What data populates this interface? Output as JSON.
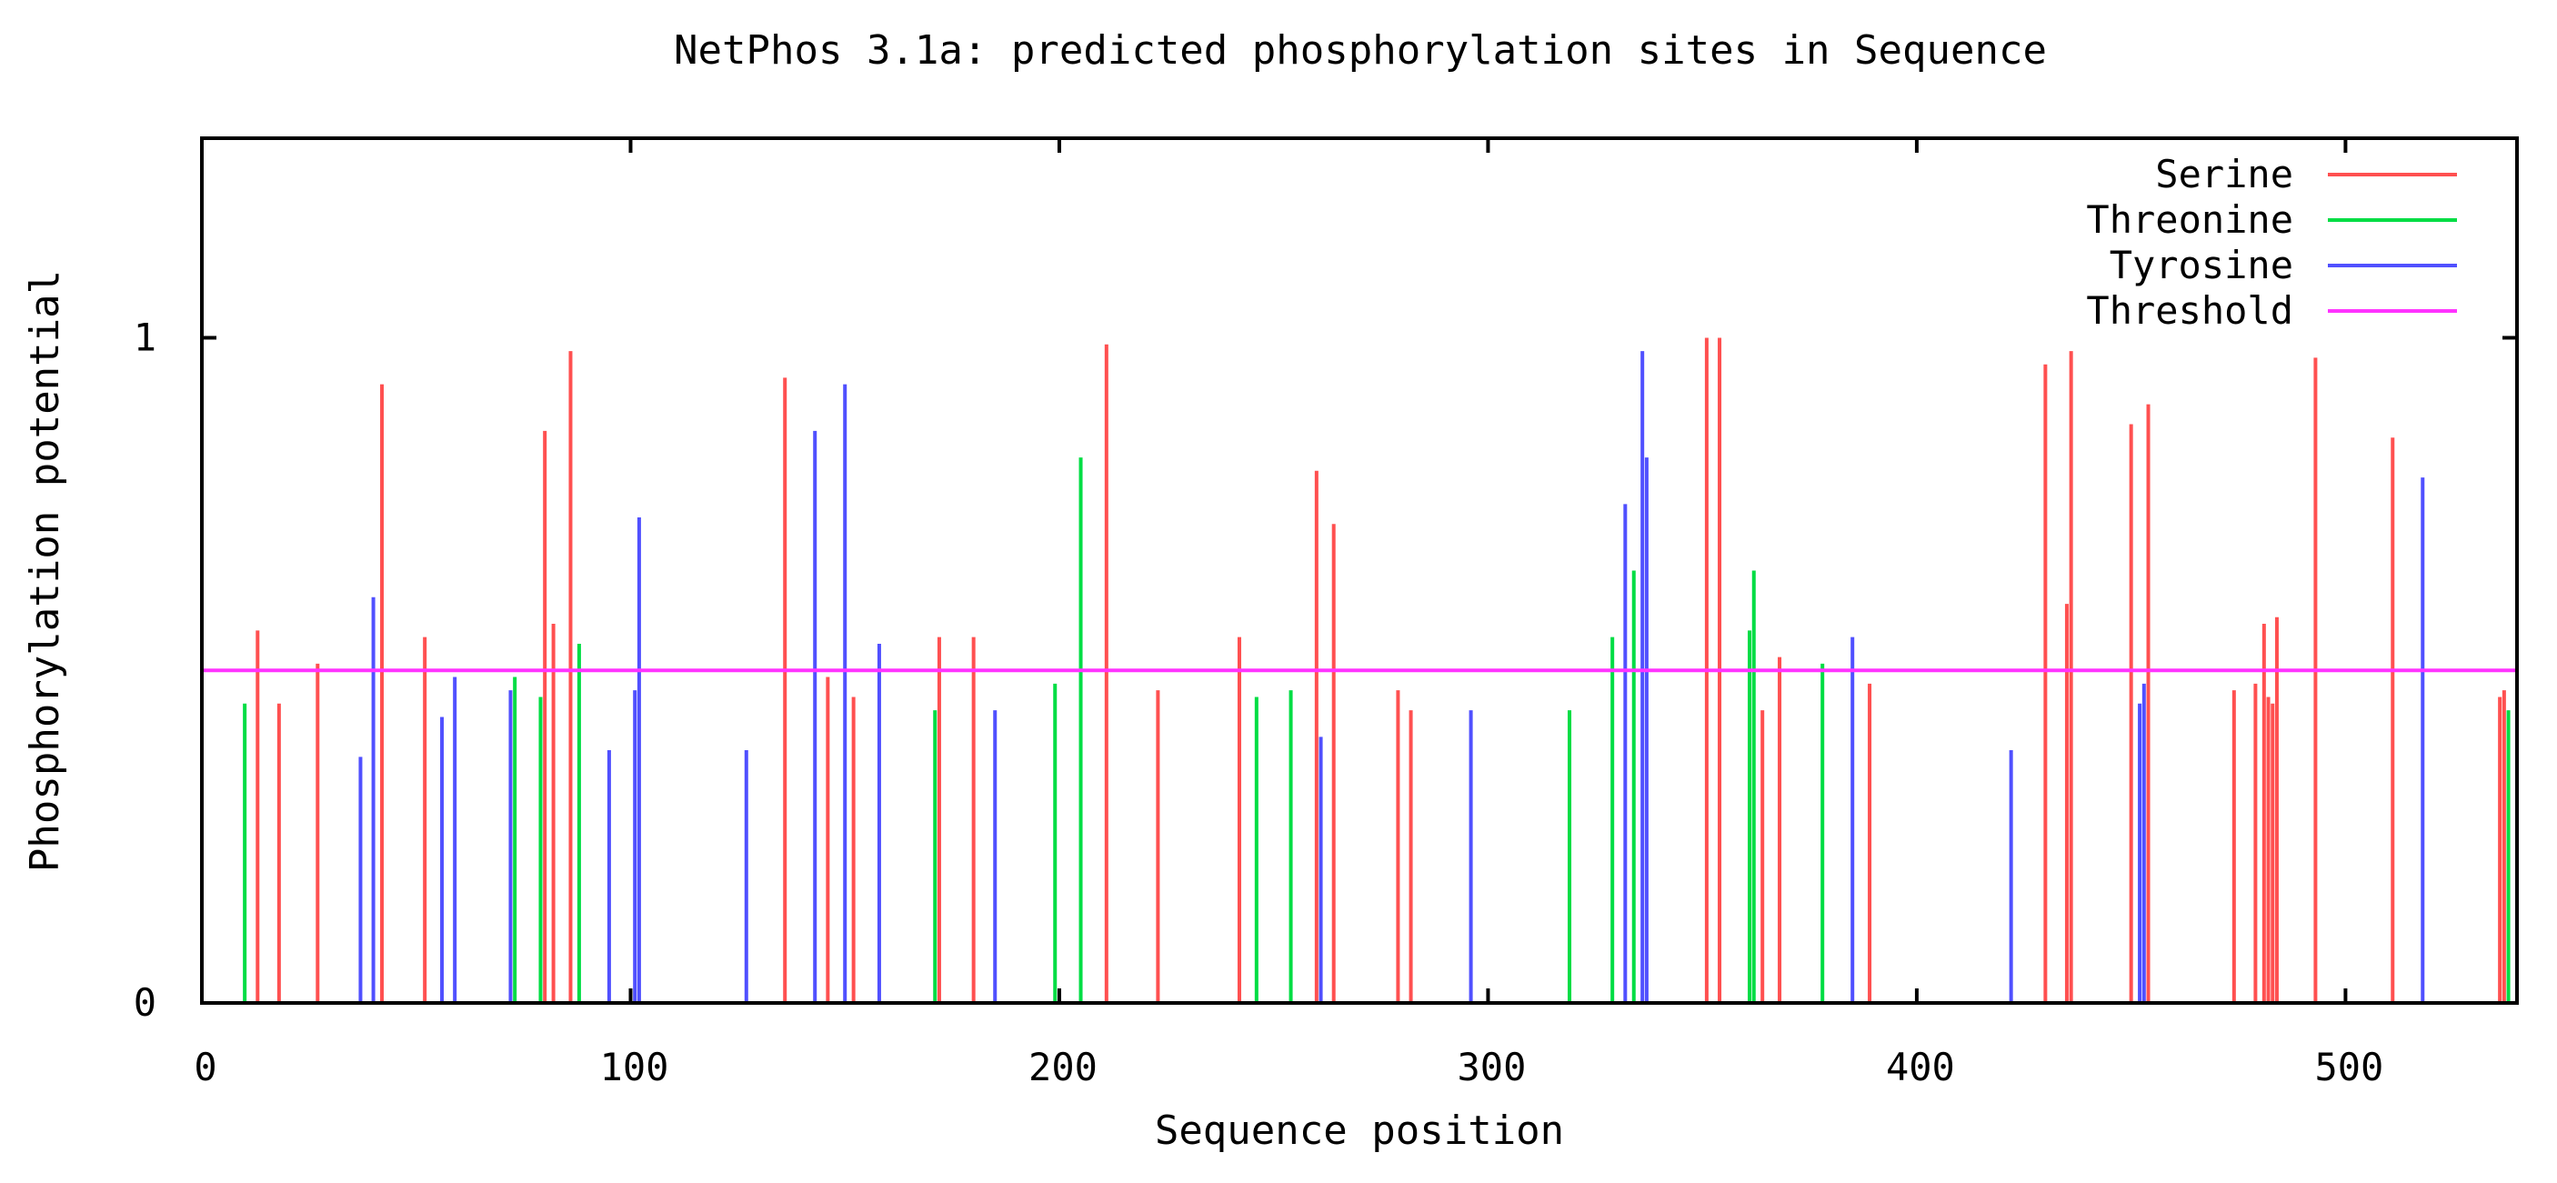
{
  "chart_data": {
    "type": "bar",
    "title": "NetPhos 3.1a: predicted phosphorylation sites in Sequence",
    "xlabel": "Sequence position",
    "ylabel": "Phosphorylation potential",
    "xlim": [
      0,
      540
    ],
    "ylim": [
      0,
      1.3
    ],
    "x_ticks": [
      0,
      100,
      200,
      300,
      400,
      500
    ],
    "y_ticks": [
      0,
      1
    ],
    "legend_position": "top-right",
    "colors": {
      "Serine": "#ff5050",
      "Threonine": "#00dd44",
      "Tyrosine": "#5050ff",
      "Threshold": "#ff33ff"
    },
    "threshold": 0.5,
    "series": [
      {
        "name": "Serine",
        "color": "#ff5050",
        "points": [
          [
            13,
            0.56
          ],
          [
            18,
            0.45
          ],
          [
            27,
            0.51
          ],
          [
            42,
            0.93
          ],
          [
            52,
            0.55
          ],
          [
            80,
            0.86
          ],
          [
            82,
            0.57
          ],
          [
            86,
            0.98
          ],
          [
            136,
            0.94
          ],
          [
            146,
            0.49
          ],
          [
            152,
            0.46
          ],
          [
            172,
            0.55
          ],
          [
            180,
            0.55
          ],
          [
            211,
            0.99
          ],
          [
            223,
            0.47
          ],
          [
            242,
            0.55
          ],
          [
            260,
            0.8
          ],
          [
            264,
            0.72
          ],
          [
            279,
            0.47
          ],
          [
            282,
            0.44
          ],
          [
            351,
            1.0
          ],
          [
            354,
            1.0
          ],
          [
            364,
            0.44
          ],
          [
            368,
            0.52
          ],
          [
            389,
            0.48
          ],
          [
            430,
            0.96
          ],
          [
            435,
            0.6
          ],
          [
            436,
            0.98
          ],
          [
            450,
            0.87
          ],
          [
            454,
            0.9
          ],
          [
            474,
            0.47
          ],
          [
            479,
            0.48
          ],
          [
            481,
            0.57
          ],
          [
            482,
            0.46
          ],
          [
            483,
            0.45
          ],
          [
            484,
            0.58
          ],
          [
            493,
            0.97
          ],
          [
            511,
            0.85
          ],
          [
            536,
            0.46
          ],
          [
            537,
            0.47
          ]
        ]
      },
      {
        "name": "Threonine",
        "color": "#00dd44",
        "points": [
          [
            10,
            0.45
          ],
          [
            73,
            0.49
          ],
          [
            79,
            0.46
          ],
          [
            88,
            0.54
          ],
          [
            171,
            0.44
          ],
          [
            199,
            0.48
          ],
          [
            205,
            0.82
          ],
          [
            246,
            0.46
          ],
          [
            254,
            0.47
          ],
          [
            319,
            0.44
          ],
          [
            329,
            0.55
          ],
          [
            334,
            0.65
          ],
          [
            361,
            0.56
          ],
          [
            362,
            0.65
          ],
          [
            378,
            0.51
          ],
          [
            538,
            0.44
          ]
        ]
      },
      {
        "name": "Tyrosine",
        "color": "#5050ff",
        "points": [
          [
            37,
            0.37
          ],
          [
            40,
            0.61
          ],
          [
            56,
            0.43
          ],
          [
            59,
            0.49
          ],
          [
            72,
            0.47
          ],
          [
            95,
            0.38
          ],
          [
            101,
            0.47
          ],
          [
            102,
            0.73
          ],
          [
            127,
            0.38
          ],
          [
            143,
            0.86
          ],
          [
            150,
            0.93
          ],
          [
            158,
            0.54
          ],
          [
            185,
            0.44
          ],
          [
            261,
            0.4
          ],
          [
            296,
            0.44
          ],
          [
            332,
            0.75
          ],
          [
            336,
            0.98
          ],
          [
            337,
            0.82
          ],
          [
            385,
            0.55
          ],
          [
            422,
            0.38
          ],
          [
            452,
            0.45
          ],
          [
            453,
            0.48
          ],
          [
            518,
            0.79
          ]
        ]
      }
    ]
  }
}
